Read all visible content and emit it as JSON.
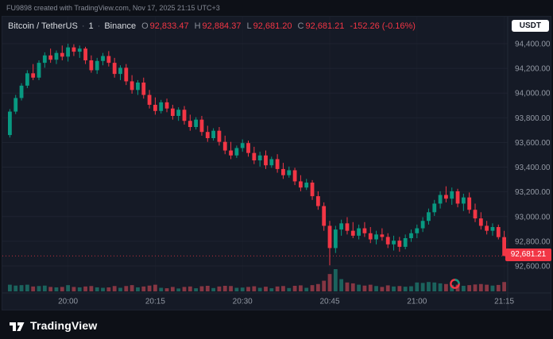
{
  "watermark": "FU9898 created with TradingView.com, Nov 17, 2025 21:15 UTC+3",
  "legend": {
    "symbol": "Bitcoin / TetherUS",
    "separator": "·",
    "interval": "1",
    "exchange": "Binance",
    "ohlc": [
      {
        "label": "O",
        "value": "92,833.47"
      },
      {
        "label": "H",
        "value": "92,884.37"
      },
      {
        "label": "L",
        "value": "92,681.20"
      },
      {
        "label": "C",
        "value": "92,681.21"
      }
    ],
    "change": "-152.26 (-0.16%)"
  },
  "currency_button": "USDT",
  "price_badge": "92,681.21",
  "logo_text": "TradingView",
  "colors": {
    "up": "#089981",
    "down": "#f23645",
    "up_volume": "rgba(34,171,148,0.5)",
    "down_volume": "rgba(247,82,95,0.5)",
    "grid": "#1e2330",
    "axis_text": "#9298a3",
    "badge": "#f23645"
  },
  "chart_data": {
    "type": "candlestick",
    "title": "Bitcoin / TetherUS · 1 · Binance",
    "interval_minutes": 1,
    "last_price": 92681.21,
    "ylim": [
      92530,
      94500
    ],
    "grid": true,
    "price_ticks": [
      "94,400.00",
      "94,200.00",
      "94,000.00",
      "93,800.00",
      "93,600.00",
      "93,400.00",
      "93,200.00",
      "93,000.00",
      "92,800.00",
      "92,600.00"
    ],
    "time_ticks": [
      "20:00",
      "20:15",
      "20:30",
      "20:45",
      "21:00",
      "21:15"
    ],
    "candles": [
      [
        "19:50",
        93660,
        93870,
        93640,
        93850,
        30
      ],
      [
        "19:51",
        93850,
        93985,
        93830,
        93960,
        26
      ],
      [
        "19:52",
        93960,
        94080,
        93940,
        94060,
        28
      ],
      [
        "19:53",
        94060,
        94185,
        94040,
        94160,
        30
      ],
      [
        "19:54",
        94160,
        94235,
        94105,
        94125,
        22
      ],
      [
        "19:55",
        94125,
        94265,
        94105,
        94245,
        24
      ],
      [
        "19:56",
        94245,
        94330,
        94205,
        94305,
        26
      ],
      [
        "19:57",
        94305,
        94360,
        94245,
        94270,
        20
      ],
      [
        "19:58",
        94270,
        94345,
        94235,
        94325,
        18
      ],
      [
        "19:59",
        94325,
        94385,
        94265,
        94295,
        20
      ],
      [
        "20:00",
        94295,
        94400,
        94255,
        94370,
        28
      ],
      [
        "20:01",
        94370,
        94395,
        94300,
        94335,
        20
      ],
      [
        "20:02",
        94335,
        94385,
        94285,
        94360,
        18
      ],
      [
        "20:03",
        94360,
        94375,
        94235,
        94265,
        22
      ],
      [
        "20:04",
        94265,
        94305,
        94165,
        94185,
        24
      ],
      [
        "20:05",
        94185,
        94285,
        94155,
        94260,
        18
      ],
      [
        "20:06",
        94260,
        94325,
        94225,
        94300,
        16
      ],
      [
        "20:07",
        94300,
        94340,
        94215,
        94245,
        18
      ],
      [
        "20:08",
        94245,
        94285,
        94125,
        94155,
        24
      ],
      [
        "20:09",
        94155,
        94225,
        94105,
        94205,
        16
      ],
      [
        "20:10",
        94205,
        94235,
        94065,
        94095,
        24
      ],
      [
        "20:11",
        94095,
        94145,
        93995,
        94025,
        28
      ],
      [
        "20:12",
        94025,
        94105,
        93985,
        94085,
        18
      ],
      [
        "20:13",
        94085,
        94125,
        93955,
        93985,
        22
      ],
      [
        "20:14",
        93985,
        94025,
        93875,
        93905,
        26
      ],
      [
        "20:15",
        93905,
        93965,
        93825,
        93855,
        30
      ],
      [
        "20:16",
        93855,
        93945,
        93835,
        93925,
        16
      ],
      [
        "20:17",
        93925,
        93955,
        93845,
        93875,
        14
      ],
      [
        "20:18",
        93875,
        93905,
        93785,
        93815,
        20
      ],
      [
        "20:19",
        93815,
        93885,
        93775,
        93865,
        13
      ],
      [
        "20:20",
        93865,
        93895,
        93745,
        93775,
        20
      ],
      [
        "20:21",
        93775,
        93825,
        93695,
        93725,
        22
      ],
      [
        "20:22",
        93725,
        93805,
        93705,
        93785,
        14
      ],
      [
        "20:23",
        93785,
        93815,
        93655,
        93685,
        23
      ],
      [
        "20:24",
        93685,
        93735,
        93605,
        93635,
        25
      ],
      [
        "20:25",
        93635,
        93715,
        93615,
        93695,
        15
      ],
      [
        "20:26",
        93695,
        93725,
        93575,
        93605,
        22
      ],
      [
        "20:27",
        93605,
        93655,
        93505,
        93535,
        25
      ],
      [
        "20:28",
        93535,
        93605,
        93465,
        93495,
        24
      ],
      [
        "20:29",
        93495,
        93575,
        93475,
        93555,
        16
      ],
      [
        "20:30",
        93555,
        93625,
        93525,
        93595,
        17
      ],
      [
        "20:31",
        93595,
        93615,
        93485,
        93515,
        20
      ],
      [
        "20:32",
        93515,
        93565,
        93425,
        93455,
        23
      ],
      [
        "20:33",
        93455,
        93525,
        93405,
        93495,
        16
      ],
      [
        "20:34",
        93495,
        93535,
        93385,
        93415,
        21
      ],
      [
        "20:35",
        93415,
        93485,
        93395,
        93465,
        14
      ],
      [
        "20:36",
        93465,
        93505,
        93355,
        93385,
        22
      ],
      [
        "20:37",
        93385,
        93435,
        93305,
        93335,
        24
      ],
      [
        "20:38",
        93335,
        93405,
        93315,
        93375,
        15
      ],
      [
        "20:39",
        93375,
        93395,
        93255,
        93285,
        25
      ],
      [
        "20:40",
        93285,
        93335,
        93205,
        93235,
        27
      ],
      [
        "20:41",
        93235,
        93305,
        93215,
        93275,
        16
      ],
      [
        "20:42",
        93275,
        93295,
        93135,
        93165,
        28
      ],
      [
        "20:43",
        93165,
        93205,
        93055,
        93085,
        33
      ],
      [
        "20:44",
        93085,
        93115,
        92885,
        92925,
        48
      ],
      [
        "20:45",
        92925,
        92965,
        92605,
        92745,
        78
      ],
      [
        "20:46",
        92745,
        92925,
        92705,
        92895,
        100
      ],
      [
        "20:47",
        92895,
        92975,
        92845,
        92945,
        55
      ],
      [
        "20:48",
        92945,
        92995,
        92855,
        92885,
        40
      ],
      [
        "20:49",
        92885,
        92955,
        92825,
        92845,
        36
      ],
      [
        "20:50",
        92845,
        92935,
        92815,
        92905,
        30
      ],
      [
        "20:51",
        92905,
        92955,
        92835,
        92865,
        26
      ],
      [
        "20:52",
        92865,
        92915,
        92785,
        92815,
        30
      ],
      [
        "20:53",
        92815,
        92885,
        92775,
        92855,
        24
      ],
      [
        "20:54",
        92855,
        92905,
        92805,
        92835,
        20
      ],
      [
        "20:55",
        92835,
        92865,
        92745,
        92775,
        27
      ],
      [
        "20:56",
        92775,
        92845,
        92725,
        92805,
        22
      ],
      [
        "20:57",
        92805,
        92835,
        92715,
        92755,
        24
      ],
      [
        "20:58",
        92755,
        92855,
        92735,
        92825,
        21
      ],
      [
        "20:59",
        92825,
        92895,
        92795,
        92865,
        23
      ],
      [
        "21:00",
        92865,
        92935,
        92825,
        92905,
        40
      ],
      [
        "21:01",
        92905,
        92995,
        92875,
        92965,
        38
      ],
      [
        "21:02",
        92965,
        93065,
        92935,
        93035,
        42
      ],
      [
        "21:03",
        93035,
        93135,
        93005,
        93105,
        40
      ],
      [
        "21:04",
        93105,
        93205,
        93065,
        93175,
        36
      ],
      [
        "21:05",
        93175,
        93245,
        93115,
        93145,
        33
      ],
      [
        "21:06",
        93145,
        93235,
        93095,
        93205,
        29
      ],
      [
        "21:07",
        93205,
        93225,
        93075,
        93105,
        30
      ],
      [
        "21:08",
        93105,
        93185,
        93045,
        93155,
        25
      ],
      [
        "21:09",
        93155,
        93195,
        93025,
        93055,
        28
      ],
      [
        "21:10",
        93055,
        93105,
        92955,
        92985,
        31
      ],
      [
        "21:11",
        92985,
        93035,
        92895,
        92925,
        33
      ],
      [
        "21:12",
        92925,
        92965,
        92855,
        92885,
        30
      ],
      [
        "21:13",
        92885,
        92945,
        92845,
        92915,
        26
      ],
      [
        "21:14",
        92915,
        92935,
        92815,
        92833.47,
        29
      ],
      [
        "21:15",
        92833.47,
        92884.37,
        92681.2,
        92681.21,
        42
      ]
    ]
  }
}
